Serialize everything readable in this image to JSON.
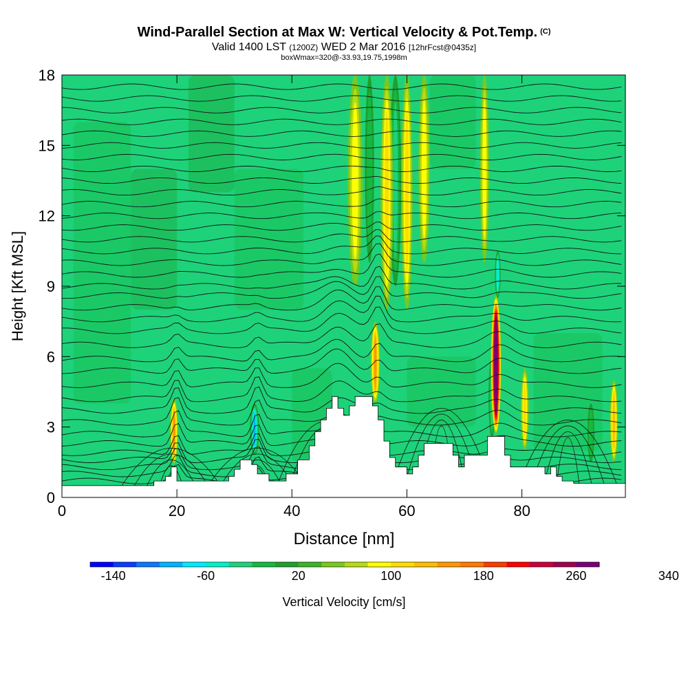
{
  "header": {
    "title": "Wind-Parallel Section at Max W: Vertical Velocity & Pot.Temp.",
    "title_tag": "(C)",
    "subtitle_a": "Valid 1400 LST",
    "subtitle_b": "(1200Z)",
    "subtitle_c": "WED 2 Mar 2016",
    "subtitle_d": "[12hrFcst@0435z]",
    "subline": "boxWmax=320@-33.93,19.75,1998m"
  },
  "chart_data": {
    "type": "heatmap",
    "xlabel": "Distance [nm]",
    "ylabel": "Height [Kft MSL]",
    "xlim": [
      0,
      98
    ],
    "ylim": [
      0,
      18
    ],
    "xticks": [
      0,
      20,
      40,
      60,
      80
    ],
    "yticks": [
      0,
      3,
      6,
      9,
      12,
      15,
      18
    ],
    "background_color": "#1ed27a",
    "terrain": {
      "x": [
        0,
        16,
        16,
        18,
        18,
        19,
        19,
        20,
        20,
        29,
        29,
        30,
        30,
        31,
        31,
        33,
        33,
        34,
        34,
        36,
        36,
        39,
        39,
        41,
        41,
        43,
        43,
        44,
        44,
        45,
        45,
        46,
        46,
        47,
        47,
        48,
        48,
        49,
        49,
        50,
        50,
        51,
        51,
        54,
        54,
        55,
        55,
        56,
        56,
        57,
        57,
        58,
        58,
        60,
        60,
        61,
        61,
        62,
        62,
        63,
        63,
        64,
        64,
        68,
        68,
        69,
        69,
        70,
        70,
        74,
        74,
        75,
        75,
        77,
        77,
        78,
        78,
        79,
        79,
        84,
        84,
        85,
        85,
        86,
        86,
        87,
        87,
        89,
        89,
        98
      ],
      "y": [
        0.5,
        0.5,
        0.7,
        0.7,
        0.9,
        0.9,
        1.3,
        1.3,
        0.7,
        0.7,
        0.9,
        0.9,
        1.2,
        1.2,
        1.6,
        1.6,
        1.4,
        1.4,
        1.0,
        1.0,
        0.7,
        0.7,
        1.0,
        1.0,
        1.6,
        1.6,
        2.2,
        2.2,
        2.8,
        2.8,
        3.3,
        3.3,
        3.8,
        3.8,
        4.3,
        4.3,
        3.8,
        3.8,
        3.5,
        3.5,
        3.9,
        3.9,
        4.3,
        4.3,
        3.9,
        3.9,
        3.3,
        3.3,
        2.4,
        2.4,
        1.7,
        1.7,
        1.3,
        1.3,
        1.0,
        1.0,
        1.3,
        1.3,
        1.8,
        1.8,
        2.3,
        2.3,
        2.3,
        2.3,
        1.8,
        1.8,
        1.3,
        1.3,
        1.8,
        1.8,
        2.6,
        2.6,
        2.6,
        2.6,
        1.8,
        1.8,
        1.3,
        1.3,
        1.3,
        1.3,
        1.0,
        1.0,
        1.3,
        1.3,
        0.9,
        0.9,
        0.7,
        0.7,
        0.6,
        0.6
      ]
    },
    "updrafts": [
      {
        "x": 19.5,
        "y0": 1.4,
        "y1": 4.2,
        "peak": 120,
        "width": 0.7
      },
      {
        "x": 54.5,
        "y0": 4.0,
        "y1": 7.5,
        "peak": 120,
        "width": 0.8
      },
      {
        "x": 56.5,
        "y0": 8.0,
        "y1": 18.0,
        "peak": 90,
        "width": 1.1
      },
      {
        "x": 60.0,
        "y0": 8.0,
        "y1": 18.0,
        "peak": 85,
        "width": 1.0
      },
      {
        "x": 51.0,
        "y0": 9.0,
        "y1": 18.0,
        "peak": 60,
        "width": 1.3
      },
      {
        "x": 63.0,
        "y0": 10.0,
        "y1": 18.0,
        "peak": 60,
        "width": 1.0
      },
      {
        "x": 75.5,
        "y0": 2.7,
        "y1": 8.6,
        "peak": 320,
        "width": 0.9
      },
      {
        "x": 73.5,
        "y0": 10.0,
        "y1": 18.0,
        "peak": 60,
        "width": 0.8
      },
      {
        "x": 80.5,
        "y0": 2.0,
        "y1": 5.5,
        "peak": 80,
        "width": 0.7
      },
      {
        "x": 96.0,
        "y0": 1.5,
        "y1": 5.0,
        "peak": 110,
        "width": 0.7
      }
    ],
    "downdrafts": [
      {
        "x": 33.5,
        "y0": 1.8,
        "y1": 4.0,
        "peak": -120,
        "width": 0.8
      },
      {
        "x": 58.0,
        "y0": 9.0,
        "y1": 18.0,
        "peak": -60,
        "width": 1.0
      },
      {
        "x": 53.5,
        "y0": 10.0,
        "y1": 18.0,
        "peak": -50,
        "width": 0.8
      },
      {
        "x": 75.8,
        "y0": 8.5,
        "y1": 10.5,
        "peak": -100,
        "width": 0.5
      },
      {
        "x": 74.8,
        "y0": 2.5,
        "y1": 6.0,
        "peak": -60,
        "width": 0.6
      },
      {
        "x": 92.0,
        "y0": 1.5,
        "y1": 4.0,
        "peak": -50,
        "width": 0.6
      }
    ],
    "isentrope_base_heights": [
      0.7,
      1.0,
      1.3,
      1.6,
      1.9,
      2.3,
      2.7,
      3.2,
      3.7,
      4.2,
      4.8,
      5.4,
      5.9,
      6.5,
      7.1,
      7.6,
      8.1,
      8.6,
      9.0,
      9.5,
      10.0,
      10.5,
      11.0,
      11.5,
      12.0,
      12.5,
      13.0,
      13.5,
      14.0,
      14.5,
      15.0,
      15.5,
      16.0,
      16.5,
      17.0,
      17.5
    ],
    "colorbar": {
      "label": "Vertical Velocity [cm/s]",
      "tick_labels": [
        "-140",
        "-60",
        "20",
        "100",
        "180",
        "260",
        "340"
      ],
      "colors": [
        "#0000ff",
        "#0a3cff",
        "#0a78ff",
        "#00b4ff",
        "#00ebff",
        "#00f0c8",
        "#1ed27a",
        "#14b941",
        "#1ea02d",
        "#3cb428",
        "#7ac81e",
        "#b4dc14",
        "#ffff00",
        "#ffdc00",
        "#ffbe00",
        "#ff9600",
        "#ff7800",
        "#ff3c00",
        "#ff0000",
        "#c8003c",
        "#a00050",
        "#780078"
      ]
    }
  }
}
